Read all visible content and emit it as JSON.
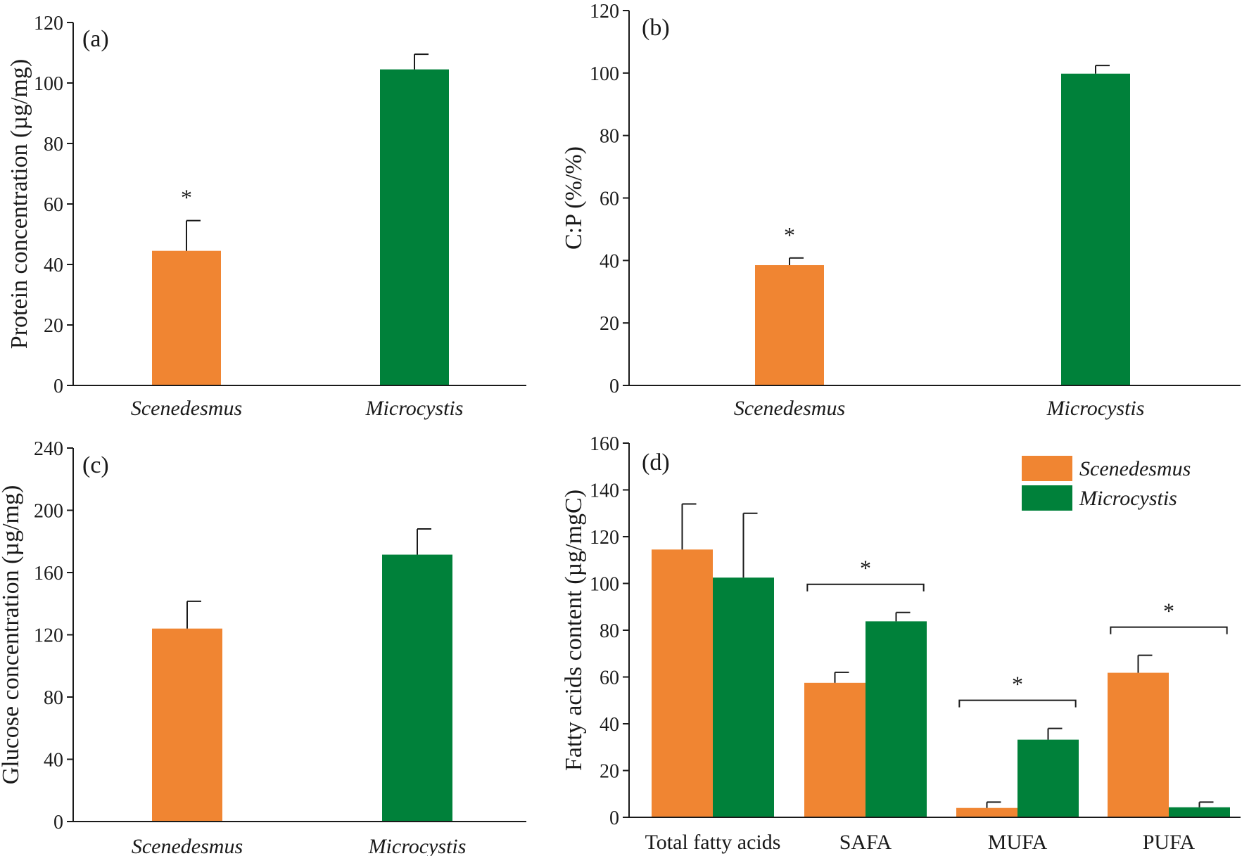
{
  "chart_data": [
    {
      "panel": "(a)",
      "type": "bar",
      "categories": [
        "Scenedesmus",
        "Microcystis"
      ],
      "values": [
        44.5,
        104.5
      ],
      "errors": [
        10,
        5
      ],
      "colors": [
        "#F08532",
        "#00813A"
      ],
      "significance": [
        "*",
        ""
      ],
      "ylabel": "Protein concentration (µg/mg)",
      "ylim": [
        0,
        120
      ],
      "yticks": [
        0,
        20,
        40,
        60,
        80,
        100,
        120
      ],
      "italic_categories": true
    },
    {
      "panel": "(b)",
      "type": "bar",
      "categories": [
        "Scenedesmus",
        "Microcystis"
      ],
      "values": [
        38.5,
        99.8
      ],
      "errors": [
        2.3,
        2.6
      ],
      "colors": [
        "#F08532",
        "#00813A"
      ],
      "significance": [
        "*",
        ""
      ],
      "ylabel": "C:P (%/%)",
      "ylim": [
        0,
        120
      ],
      "yticks": [
        0,
        20,
        40,
        60,
        80,
        100,
        120
      ],
      "italic_categories": true
    },
    {
      "panel": "(c)",
      "type": "bar",
      "categories": [
        "Scenedesmus",
        "Microcystis"
      ],
      "values": [
        124,
        171.5
      ],
      "errors": [
        17.5,
        16.5
      ],
      "colors": [
        "#F08532",
        "#00813A"
      ],
      "significance": [
        "",
        ""
      ],
      "ylabel": "Glucose concentration (µg/mg)",
      "ylim": [
        0,
        240
      ],
      "yticks": [
        0,
        40,
        80,
        120,
        160,
        200,
        240
      ],
      "italic_categories": true
    },
    {
      "panel": "(d)",
      "type": "bar",
      "categories": [
        "Total fatty acids",
        "SAFA",
        "MUFA",
        "PUFA"
      ],
      "series": [
        {
          "name": "Scenedesmus",
          "color": "#F08532",
          "values": [
            114.5,
            57.5,
            4,
            61.8
          ],
          "errors": [
            19.5,
            4.5,
            2.5,
            7.5
          ]
        },
        {
          "name": "Microcystis",
          "color": "#00813A",
          "values": [
            102.5,
            83.8,
            33.2,
            4.3
          ],
          "errors": [
            27.5,
            3.8,
            4.8,
            2.2
          ]
        }
      ],
      "significance": [
        "",
        "*",
        "*",
        "*"
      ],
      "ylabel": "Fatty acids content (µg/mgC)",
      "ylim": [
        0,
        160
      ],
      "yticks": [
        0,
        20,
        40,
        60,
        80,
        100,
        120,
        140,
        160
      ],
      "legend": {
        "position": "top-right",
        "entries": [
          "Scenedesmus",
          "Microcystis"
        ]
      },
      "italic_categories": false
    }
  ]
}
